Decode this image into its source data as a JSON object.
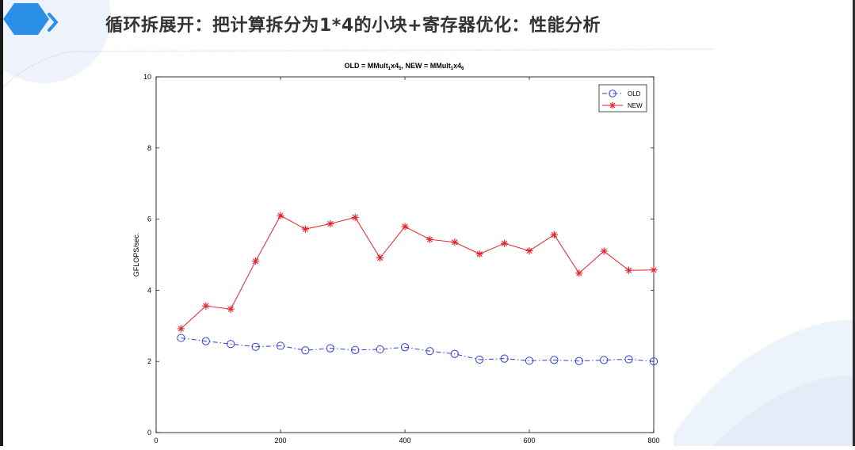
{
  "slide": {
    "title": "循环拆展开：把计算拆分为1*4的小块+寄存器优化：性能分析",
    "icons": [
      "hexagon-logo-icon",
      "chevron-right-icon"
    ],
    "colors": {
      "accent": "#2b8fe8",
      "title": "#333333",
      "decor": "#e8eef8"
    }
  },
  "chart_data": {
    "type": "line",
    "title": {
      "parts": [
        {
          "t": "OLD = MMult",
          "sub": false
        },
        {
          "t": "1",
          "sub": true
        },
        {
          "t": "x4",
          "sub": false
        },
        {
          "t": "5",
          "sub": true
        },
        {
          "t": ", NEW = MMult",
          "sub": false
        },
        {
          "t": "1",
          "sub": true
        },
        {
          "t": "x4",
          "sub": false
        },
        {
          "t": "6",
          "sub": true
        }
      ]
    },
    "xlabel": "",
    "ylabel": "GFLOPS/sec.",
    "xlim": [
      0,
      800
    ],
    "ylim": [
      0,
      10
    ],
    "xticks": [
      0,
      200,
      400,
      600,
      800
    ],
    "yticks": [
      0,
      2,
      4,
      6,
      8,
      10
    ],
    "x": [
      40,
      80,
      120,
      160,
      200,
      240,
      280,
      320,
      360,
      400,
      440,
      480,
      520,
      560,
      600,
      640,
      680,
      720,
      760,
      800
    ],
    "series": [
      {
        "name": "OLD",
        "color": "#2f3fd6",
        "line_style": "dash-dot",
        "marker": "circle",
        "values": [
          2.66,
          2.57,
          2.49,
          2.41,
          2.44,
          2.31,
          2.37,
          2.32,
          2.34,
          2.4,
          2.29,
          2.21,
          2.05,
          2.08,
          2.02,
          2.04,
          2.01,
          2.04,
          2.06,
          2.0
        ]
      },
      {
        "name": "NEW",
        "color": "#e3202a",
        "line_style": "solid",
        "marker": "asterisk",
        "values": [
          2.92,
          3.56,
          3.47,
          4.82,
          6.1,
          5.72,
          5.87,
          6.05,
          4.91,
          5.79,
          5.43,
          5.35,
          5.02,
          5.32,
          5.11,
          5.56,
          4.48,
          5.1,
          4.56,
          4.57
        ]
      }
    ],
    "legend": {
      "position": "top-right"
    },
    "grid": false
  }
}
